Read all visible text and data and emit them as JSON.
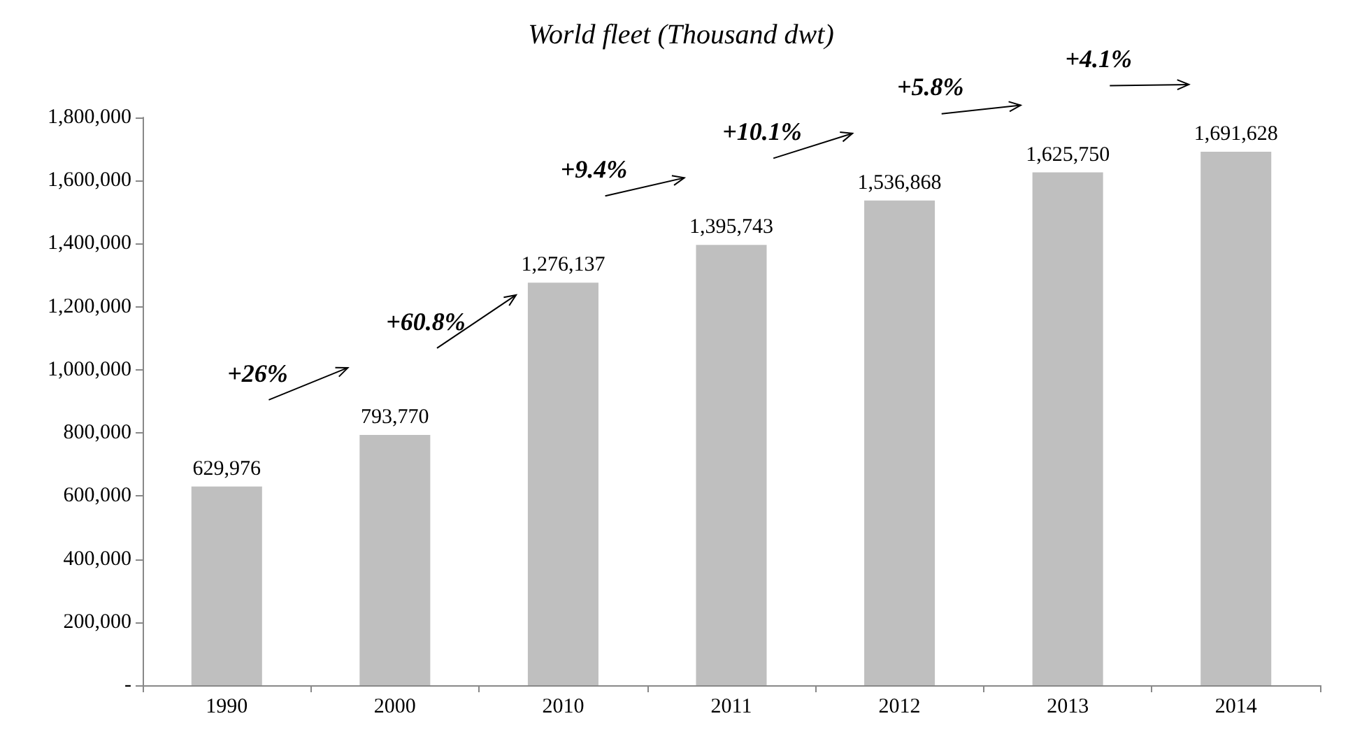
{
  "chart_data": {
    "type": "bar",
    "title": "World fleet (Thousand dwt)",
    "categories": [
      "1990",
      "2000",
      "2010",
      "2011",
      "2012",
      "2013",
      "2014"
    ],
    "values": [
      629976,
      793770,
      1276137,
      1395743,
      1536868,
      1625750,
      1691628
    ],
    "value_labels": [
      "629,976",
      "793,770",
      "1,276,137",
      "1,395,743",
      "1,536,868",
      "1,625,750",
      "1,691,628"
    ],
    "color": "#bfbfbf",
    "ylim": [
      0,
      1800000
    ],
    "yticks": [
      {
        "value": 0,
        "label": "-"
      },
      {
        "value": 200000,
        "label": "200,000"
      },
      {
        "value": 400000,
        "label": "400,000"
      },
      {
        "value": 600000,
        "label": "600,000"
      },
      {
        "value": 800000,
        "label": "800,000"
      },
      {
        "value": 1000000,
        "label": "1,000,000"
      },
      {
        "value": 1200000,
        "label": "1,200,000"
      },
      {
        "value": 1400000,
        "label": "1,400,000"
      },
      {
        "value": 1600000,
        "label": "1,600,000"
      },
      {
        "value": 1800000,
        "label": "1,800,000"
      }
    ],
    "annotations": [
      "+26%",
      "+60.8%",
      "+9.4%",
      "+10.1%",
      "+5.8%",
      "+4.1%"
    ],
    "grid": false
  }
}
